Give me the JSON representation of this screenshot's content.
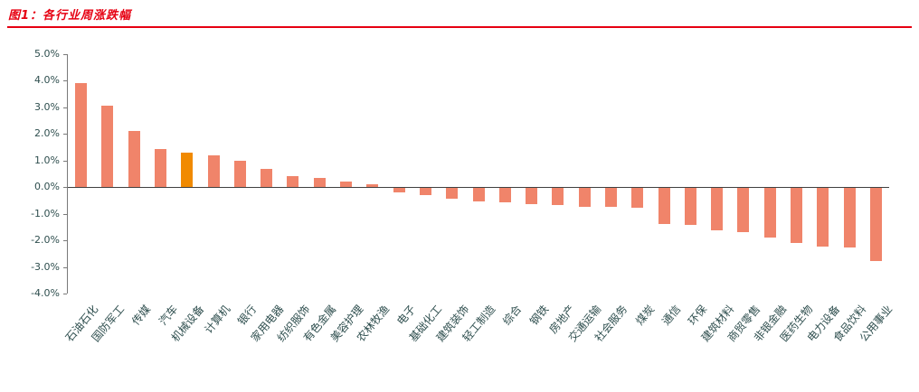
{
  "header": {
    "title": "图1：各行业周涨跌幅",
    "accent_color": "#e60012"
  },
  "chart_data": {
    "type": "bar",
    "title": "各行业周涨跌幅",
    "categories": [
      "石油石化",
      "国防军工",
      "传媒",
      "汽车",
      "机械设备",
      "计算机",
      "银行",
      "家用电器",
      "纺织服饰",
      "有色金属",
      "美容护理",
      "农林牧渔",
      "电子",
      "基础化工",
      "建筑装饰",
      "轻工制造",
      "综合",
      "钢铁",
      "房地产",
      "交通运输",
      "社会服务",
      "煤炭",
      "通信",
      "环保",
      "建筑材料",
      "商贸零售",
      "非银金融",
      "医药生物",
      "电力设备",
      "食品饮料",
      "公用事业"
    ],
    "values": [
      3.9,
      3.05,
      2.1,
      1.45,
      1.3,
      1.2,
      1.0,
      0.7,
      0.4,
      0.35,
      0.2,
      0.1,
      -0.15,
      -0.25,
      -0.4,
      -0.5,
      -0.55,
      -0.6,
      -0.65,
      -0.7,
      -0.7,
      -0.75,
      -1.35,
      -1.4,
      -1.6,
      -1.65,
      -1.85,
      -2.05,
      -2.2,
      -2.25,
      -2.75
    ],
    "unit": "%",
    "highlight_index": 4,
    "highlight_category": "机械设备",
    "bar_color": "#f0846a",
    "highlight_color": "#f18a00",
    "axis_text_color": "#2f4f4f",
    "ylim": [
      -4.0,
      5.0
    ],
    "yticks": [
      {
        "value": 5,
        "label": "5.0%"
      },
      {
        "value": 4,
        "label": "4.0%"
      },
      {
        "value": 3,
        "label": "3.0%"
      },
      {
        "value": 2,
        "label": "2.0%"
      },
      {
        "value": 1,
        "label": "1.0%"
      },
      {
        "value": 0,
        "label": "0.0%"
      },
      {
        "value": -1,
        "label": "-1.0%"
      },
      {
        "value": -2,
        "label": "-2.0%"
      },
      {
        "value": -3,
        "label": "-3.0%"
      },
      {
        "value": -4,
        "label": "-4.0%"
      }
    ],
    "grid": false,
    "legend": "none"
  }
}
